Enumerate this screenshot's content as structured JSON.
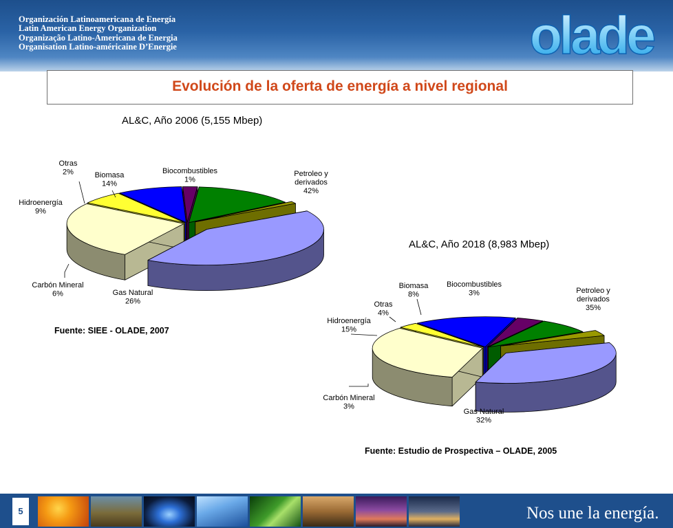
{
  "header": {
    "org_names": [
      "Organización Latinoamericana de Energía",
      "Latin American Energy Organization",
      "Organização Latino-Americana de Energia",
      "Organisation Latino-américaine D’Energie"
    ],
    "logo_text": "olade"
  },
  "page_title": "Evolución de la oferta de energía a nivel regional",
  "chart_data": [
    {
      "type": "pie",
      "title": "AL&C, Año 2006 (5,155 Mbep)",
      "categories": [
        "Petroleo y derivados",
        "Gas Natural",
        "Carbón Mineral",
        "Hidroenergía",
        "Otras",
        "Biomasa",
        "Biocombustibles"
      ],
      "values": [
        42,
        26,
        6,
        9,
        2,
        14,
        1
      ],
      "labels": [
        {
          "name": "Petroleo y\nderivados",
          "value": "42%"
        },
        {
          "name": "Gas Natural",
          "value": "26%"
        },
        {
          "name": "Carbón Mineral",
          "value": "6%"
        },
        {
          "name": "Hidroenergía",
          "value": "9%"
        },
        {
          "name": "Otras",
          "value": "2%"
        },
        {
          "name": "Biomasa",
          "value": "14%"
        },
        {
          "name": "Biocombustibles",
          "value": "1%"
        }
      ],
      "colors": [
        "#9999ff",
        "#ffffcc",
        "#ffff33",
        "#0000ff",
        "#660066",
        "#008000",
        "#999900"
      ],
      "exploded": [
        "Petroleo y derivados",
        "Biocombustibles"
      ]
    },
    {
      "type": "pie",
      "title": "AL&C, Año 2018 (8,983 Mbep)",
      "categories": [
        "Petroleo y derivados",
        "Gas Natural",
        "Carbón Mineral",
        "Hidroenergía",
        "Otras",
        "Biomasa",
        "Biocombustibles"
      ],
      "values": [
        35,
        32,
        3,
        15,
        4,
        8,
        3
      ],
      "labels": [
        {
          "name": "Petroleo y\nderivados",
          "value": "35%"
        },
        {
          "name": "Gas Natural",
          "value": "32%"
        },
        {
          "name": "Carbón Mineral",
          "value": "3%"
        },
        {
          "name": "Hidroenergía",
          "value": "15%"
        },
        {
          "name": "Otras",
          "value": "4%"
        },
        {
          "name": "Biomasa",
          "value": "8%"
        },
        {
          "name": "Biocombustibles",
          "value": "3%"
        }
      ],
      "colors": [
        "#9999ff",
        "#ffffcc",
        "#ffff33",
        "#0000ff",
        "#660066",
        "#008000",
        "#999900"
      ],
      "exploded": [
        "Petroleo y derivados",
        "Biocombustibles"
      ]
    }
  ],
  "sources": {
    "chart1": "Fuente: SIEE - OLADE, 2007",
    "chart2": "Fuente: Estudio de Prospectiva – OLADE, 2005"
  },
  "footer": {
    "page_number": "5",
    "slogan": "Nos une la energía.",
    "photos": [
      "wind-turbine-photo",
      "oil-pumps-photo",
      "gas-flame-photo",
      "solar-panels-photo",
      "leaf-photo",
      "mining-truck-photo",
      "power-lines-photo",
      "refinery-photo"
    ]
  }
}
